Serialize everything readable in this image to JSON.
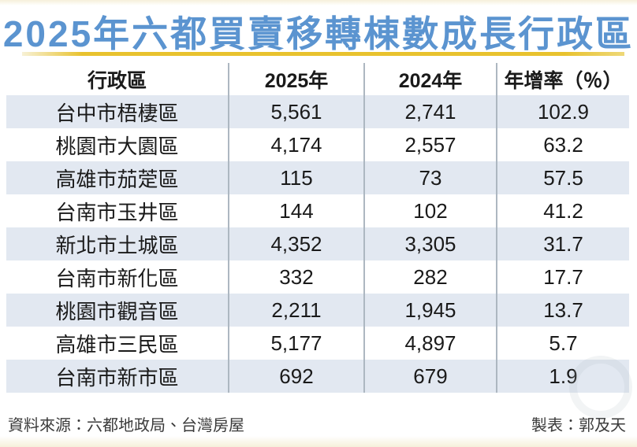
{
  "title": "2025年六都買賣移轉棟數成長行政區",
  "colors": {
    "title_blue": "#5B94D0",
    "gold_line": "#E8C22E",
    "row_shade": "#E2E8F1",
    "divider_gray": "#ADB7C1",
    "text_dark": "#1A1A1A",
    "footer_text": "#3A3A3A",
    "cream_edge": "#F6F0DA"
  },
  "table": {
    "headers": [
      "行政區",
      "2025年",
      "2024年",
      "年增率（％）"
    ],
    "rows": [
      [
        "台中市梧棲區",
        "5,561",
        "2,741",
        "102.9"
      ],
      [
        "桃園市大園區",
        "4,174",
        "2,557",
        "63.2"
      ],
      [
        "高雄市茄萣區",
        "115",
        "73",
        "57.5"
      ],
      [
        "台南市玉井區",
        "144",
        "102",
        "41.2"
      ],
      [
        "新北市土城區",
        "4,352",
        "3,305",
        "31.7"
      ],
      [
        "台南市新化區",
        "332",
        "282",
        "17.7"
      ],
      [
        "桃園市觀音區",
        "2,211",
        "1,945",
        "13.7"
      ],
      [
        "高雄市三民區",
        "5,177",
        "4,897",
        "5.7"
      ],
      [
        "台南市新市區",
        "692",
        "679",
        "1.9"
      ]
    ]
  },
  "footer": {
    "source": "資料來源：六都地政局、台灣房屋",
    "credit": "製表：郭及天"
  },
  "chart_data": {
    "type": "table",
    "title": "2025年六都買賣移轉棟數成長行政區",
    "columns": [
      "行政區",
      "2025年",
      "2024年",
      "年增率（％）"
    ],
    "rows": [
      {
        "district": "台中市梧棲區",
        "y2025": 5561,
        "y2024": 2741,
        "growth_pct": 102.9
      },
      {
        "district": "桃園市大園區",
        "y2025": 4174,
        "y2024": 2557,
        "growth_pct": 63.2
      },
      {
        "district": "高雄市茄萣區",
        "y2025": 115,
        "y2024": 73,
        "growth_pct": 57.5
      },
      {
        "district": "台南市玉井區",
        "y2025": 144,
        "y2024": 102,
        "growth_pct": 41.2
      },
      {
        "district": "新北市土城區",
        "y2025": 4352,
        "y2024": 3305,
        "growth_pct": 31.7
      },
      {
        "district": "台南市新化區",
        "y2025": 332,
        "y2024": 282,
        "growth_pct": 17.7
      },
      {
        "district": "桃園市觀音區",
        "y2025": 2211,
        "y2024": 1945,
        "growth_pct": 13.7
      },
      {
        "district": "高雄市三民區",
        "y2025": 5177,
        "y2024": 4897,
        "growth_pct": 5.7
      },
      {
        "district": "台南市新市區",
        "y2025": 692,
        "y2024": 679,
        "growth_pct": 1.9
      }
    ],
    "source": "資料來源：六都地政局、台灣房屋",
    "credit": "製表：郭及天"
  }
}
